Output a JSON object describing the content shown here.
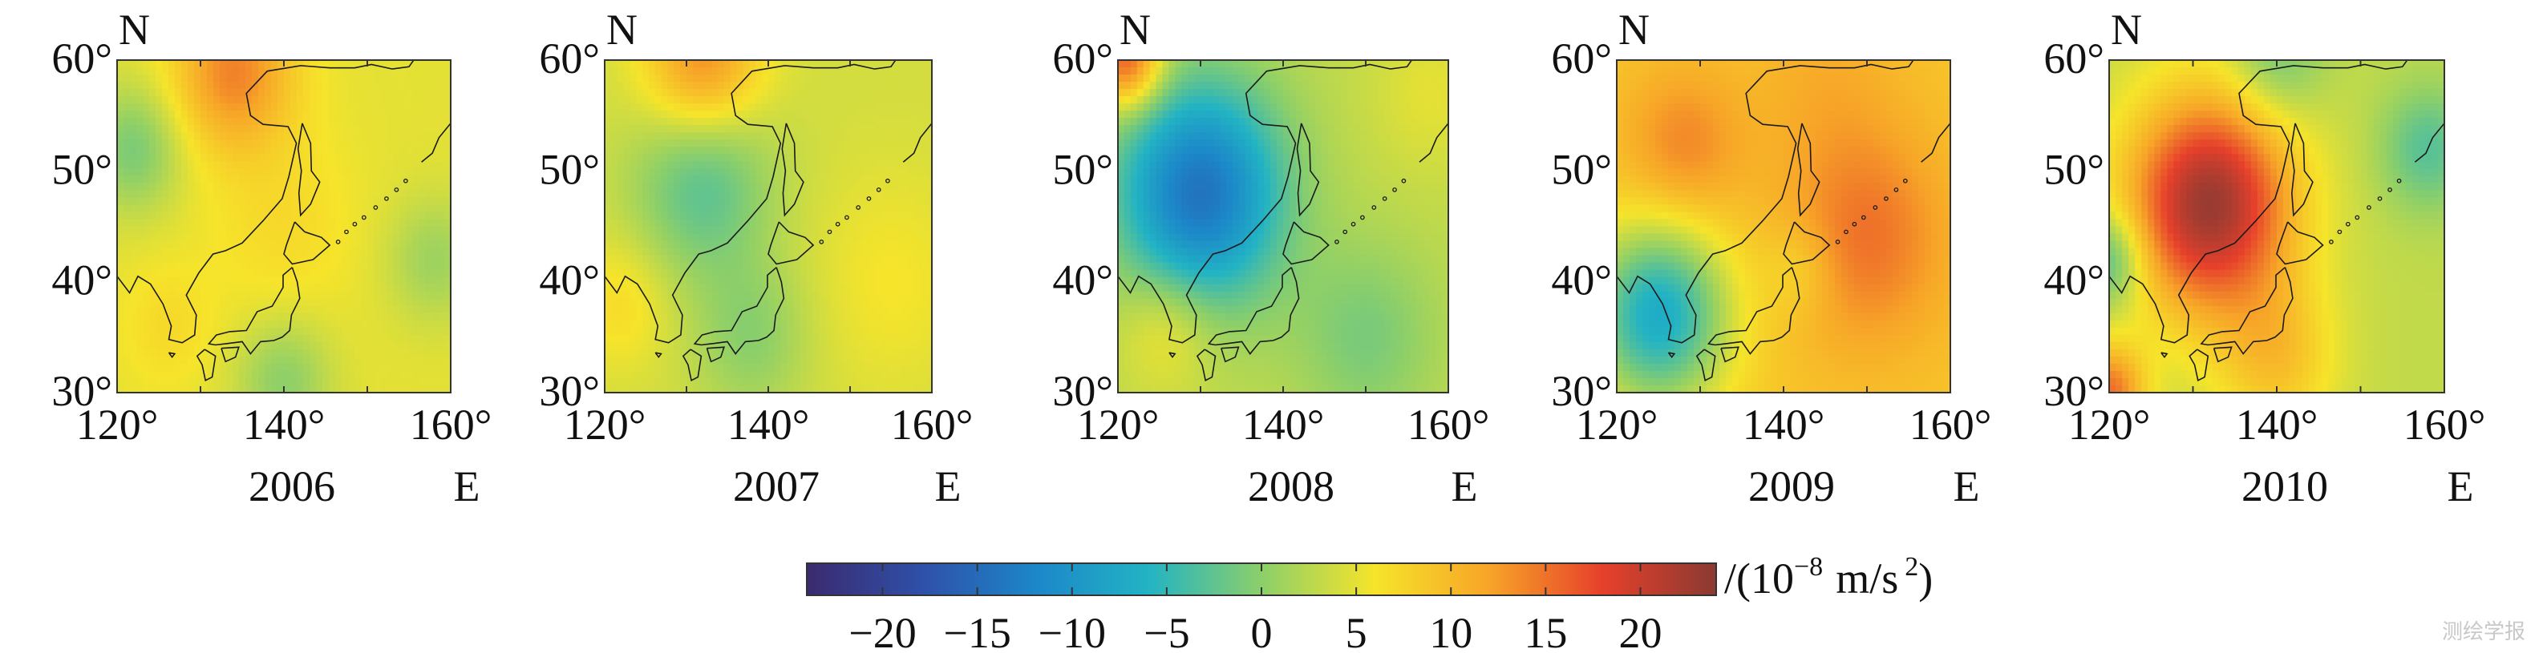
{
  "chart_data": {
    "type": "heatmap",
    "panel_labels": [
      "2006",
      "2007",
      "2008",
      "2009",
      "2010"
    ],
    "north_label": "N",
    "east_label": "E",
    "x_ticks": [
      "120°",
      "140°",
      "160°"
    ],
    "y_ticks": [
      "60°",
      "50°",
      "40°",
      "30°"
    ],
    "x_range_deg": [
      120,
      160
    ],
    "y_range_deg": [
      30,
      60
    ],
    "colorbar": {
      "ticks": [
        "−20",
        "−15",
        "−10",
        "−5",
        "0",
        "5",
        "10",
        "15",
        "20"
      ],
      "range": [
        -24,
        24
      ],
      "unit_text": "/(10",
      "unit_exp": "−8",
      "unit_mid": "m/s",
      "unit_exp2": "2",
      "unit_close": ")",
      "colors": [
        "#3b2a6e",
        "#2f4fa8",
        "#1c86c9",
        "#22b3c4",
        "#8ccf6a",
        "#f6e42a",
        "#f7a528",
        "#e6402b",
        "#8a3a32"
      ]
    },
    "fields": [
      {
        "year": "2006",
        "base": 5,
        "blobs": [
          {
            "lon": 134,
            "lat": 59,
            "amp": 9,
            "s": 5
          },
          {
            "lon": 122,
            "lat": 52,
            "amp": -6,
            "s": 4
          },
          {
            "lon": 140,
            "lat": 45,
            "amp": 2,
            "s": 6
          },
          {
            "lon": 158,
            "lat": 42,
            "amp": -4,
            "s": 4
          },
          {
            "lon": 140,
            "lat": 31,
            "amp": -5,
            "s": 4
          },
          {
            "lon": 126,
            "lat": 36,
            "amp": 2,
            "s": 4
          }
        ]
      },
      {
        "year": "2007",
        "base": 4,
        "blobs": [
          {
            "lon": 132,
            "lat": 60,
            "amp": 10,
            "s": 5
          },
          {
            "lon": 132,
            "lat": 49,
            "amp": -7,
            "s": 6
          },
          {
            "lon": 138,
            "lat": 35,
            "amp": -4,
            "s": 5
          },
          {
            "lon": 155,
            "lat": 40,
            "amp": 2,
            "s": 7
          },
          {
            "lon": 122,
            "lat": 38,
            "amp": 3,
            "s": 4
          }
        ]
      },
      {
        "year": "2008",
        "base": 3,
        "blobs": [
          {
            "lon": 130,
            "lat": 48,
            "amp": -17,
            "s": 7
          },
          {
            "lon": 121,
            "lat": 60,
            "amp": 14,
            "s": 3
          },
          {
            "lon": 126,
            "lat": 36,
            "amp": 4,
            "s": 4
          },
          {
            "lon": 150,
            "lat": 35,
            "amp": -4,
            "s": 6
          },
          {
            "lon": 158,
            "lat": 57,
            "amp": 2,
            "s": 5
          }
        ]
      },
      {
        "year": "2009",
        "base": 9,
        "blobs": [
          {
            "lon": 125,
            "lat": 37,
            "amp": -16,
            "s": 6
          },
          {
            "lon": 150,
            "lat": 44,
            "amp": 6,
            "s": 7
          },
          {
            "lon": 128,
            "lat": 52,
            "amp": 5,
            "s": 5
          },
          {
            "lon": 145,
            "lat": 58,
            "amp": 2,
            "s": 6
          },
          {
            "lon": 142,
            "lat": 41,
            "amp": -3,
            "s": 3
          }
        ]
      },
      {
        "year": "2010",
        "base": 3,
        "blobs": [
          {
            "lon": 132,
            "lat": 47,
            "amp": 20,
            "s": 7
          },
          {
            "lon": 158,
            "lat": 52,
            "amp": -6,
            "s": 4
          },
          {
            "lon": 120,
            "lat": 30,
            "amp": 12,
            "s": 3
          },
          {
            "lon": 120,
            "lat": 42,
            "amp": -8,
            "s": 3
          },
          {
            "lon": 140,
            "lat": 60,
            "amp": -5,
            "s": 4
          },
          {
            "lon": 140,
            "lat": 33,
            "amp": 6,
            "s": 5
          }
        ]
      }
    ]
  },
  "watermark": "测绘学报"
}
